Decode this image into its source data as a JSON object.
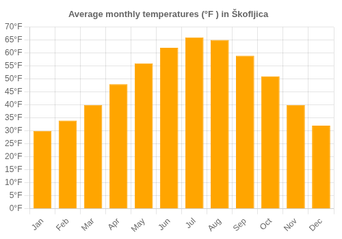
{
  "chart_data": {
    "type": "bar",
    "title": "Average monthly temperatures (°F ) in Škofljica",
    "categories": [
      "Jan",
      "Feb",
      "Mar",
      "Apr",
      "May",
      "Jun",
      "Jul",
      "Aug",
      "Sep",
      "Oct",
      "Nov",
      "Dec"
    ],
    "values": [
      30,
      34,
      40,
      48,
      56,
      62,
      66,
      65,
      59,
      51,
      40,
      32
    ],
    "color": "#FFA500",
    "ylim": [
      0,
      70
    ],
    "yticks": [
      {
        "value": 0,
        "label": "0°F"
      },
      {
        "value": 5,
        "label": "5°F"
      },
      {
        "value": 10,
        "label": "10°F"
      },
      {
        "value": 15,
        "label": "15°F"
      },
      {
        "value": 20,
        "label": "20°F"
      },
      {
        "value": 25,
        "label": "25°F"
      },
      {
        "value": 30,
        "label": "30°F"
      },
      {
        "value": 35,
        "label": "35°F"
      },
      {
        "value": 40,
        "label": "40°F"
      },
      {
        "value": 45,
        "label": "45°F"
      },
      {
        "value": 50,
        "label": "50°F"
      },
      {
        "value": 55,
        "label": "55°F"
      },
      {
        "value": 60,
        "label": "60°F"
      },
      {
        "value": 65,
        "label": "65°F"
      },
      {
        "value": 70,
        "label": "70°F"
      }
    ],
    "grid": true
  }
}
